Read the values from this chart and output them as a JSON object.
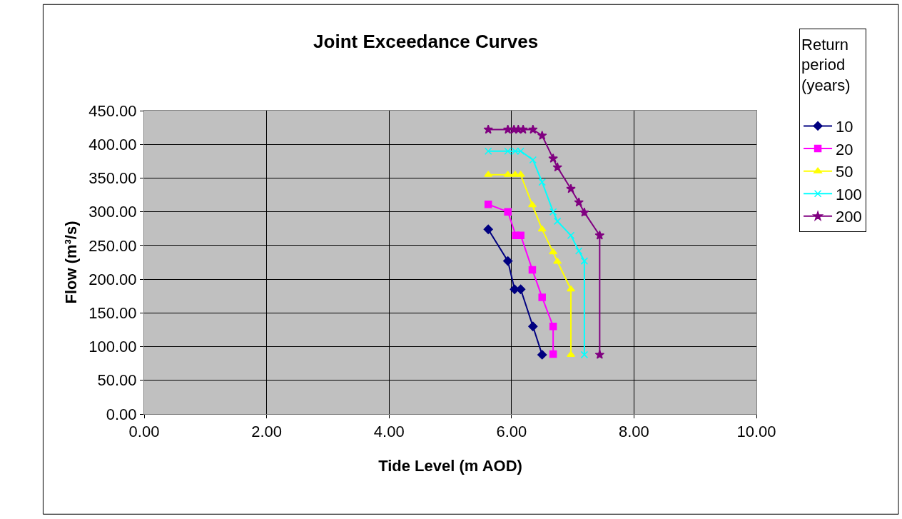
{
  "chart_data": {
    "type": "line",
    "title": "Joint Exceedance Curves",
    "xlabel": "Tide Level (m AOD)",
    "ylabel": "Flow (m³/s)",
    "legend_title": "Return period (years)",
    "xlim": [
      0,
      10
    ],
    "xticks": [
      {
        "value": 0,
        "label": "0.00"
      },
      {
        "value": 2,
        "label": "2.00"
      },
      {
        "value": 4,
        "label": "4.00"
      },
      {
        "value": 6,
        "label": "6.00"
      },
      {
        "value": 8,
        "label": "8.00"
      },
      {
        "value": 10,
        "label": "10.00"
      }
    ],
    "ylim": [
      0,
      450
    ],
    "yticks": [
      {
        "value": 0,
        "label": "0.00"
      },
      {
        "value": 50,
        "label": "50.00"
      },
      {
        "value": 100,
        "label": "100.00"
      },
      {
        "value": 150,
        "label": "150.00"
      },
      {
        "value": 200,
        "label": "200.00"
      },
      {
        "value": 250,
        "label": "250.00"
      },
      {
        "value": 300,
        "label": "300.00"
      },
      {
        "value": 350,
        "label": "350.00"
      },
      {
        "value": 400,
        "label": "400.00"
      },
      {
        "value": 450,
        "label": "450.00"
      }
    ],
    "grid": true,
    "legend": "right",
    "series": [
      {
        "name": "10",
        "color": "#000080",
        "marker": "diamond",
        "x": [
          5.62,
          5.94,
          6.05,
          6.15,
          6.35,
          6.5
        ],
        "values": [
          274,
          227,
          185,
          185,
          130,
          88
        ]
      },
      {
        "name": "20",
        "color": "#ff00ff",
        "marker": "square",
        "x": [
          5.62,
          5.94,
          6.07,
          6.15,
          6.34,
          6.5,
          6.68,
          6.68
        ],
        "values": [
          311,
          300,
          265,
          265,
          214,
          173,
          130,
          89
        ]
      },
      {
        "name": "50",
        "color": "#ffff00",
        "marker": "triangle",
        "x": [
          5.62,
          5.94,
          6.06,
          6.15,
          6.34,
          6.5,
          6.68,
          6.75,
          6.97,
          6.97
        ],
        "values": [
          355,
          355,
          355,
          355,
          310,
          274,
          240,
          226,
          185,
          88
        ]
      },
      {
        "name": "100",
        "color": "#00ffff",
        "marker": "cross",
        "x": [
          5.62,
          5.94,
          6.06,
          6.15,
          6.35,
          6.5,
          6.68,
          6.75,
          6.97,
          7.1,
          7.19,
          7.19
        ],
        "values": [
          390,
          390,
          390,
          390,
          377,
          344,
          300,
          286,
          265,
          242,
          227,
          88
        ]
      },
      {
        "name": "200",
        "color": "#800080",
        "marker": "star",
        "x": [
          5.62,
          5.94,
          6.04,
          6.11,
          6.19,
          6.35,
          6.5,
          6.68,
          6.75,
          6.97,
          7.1,
          7.19,
          7.44,
          7.44
        ],
        "values": [
          422,
          422,
          422,
          422,
          422,
          422,
          413,
          379,
          366,
          334,
          314,
          299,
          265,
          88
        ]
      }
    ]
  }
}
